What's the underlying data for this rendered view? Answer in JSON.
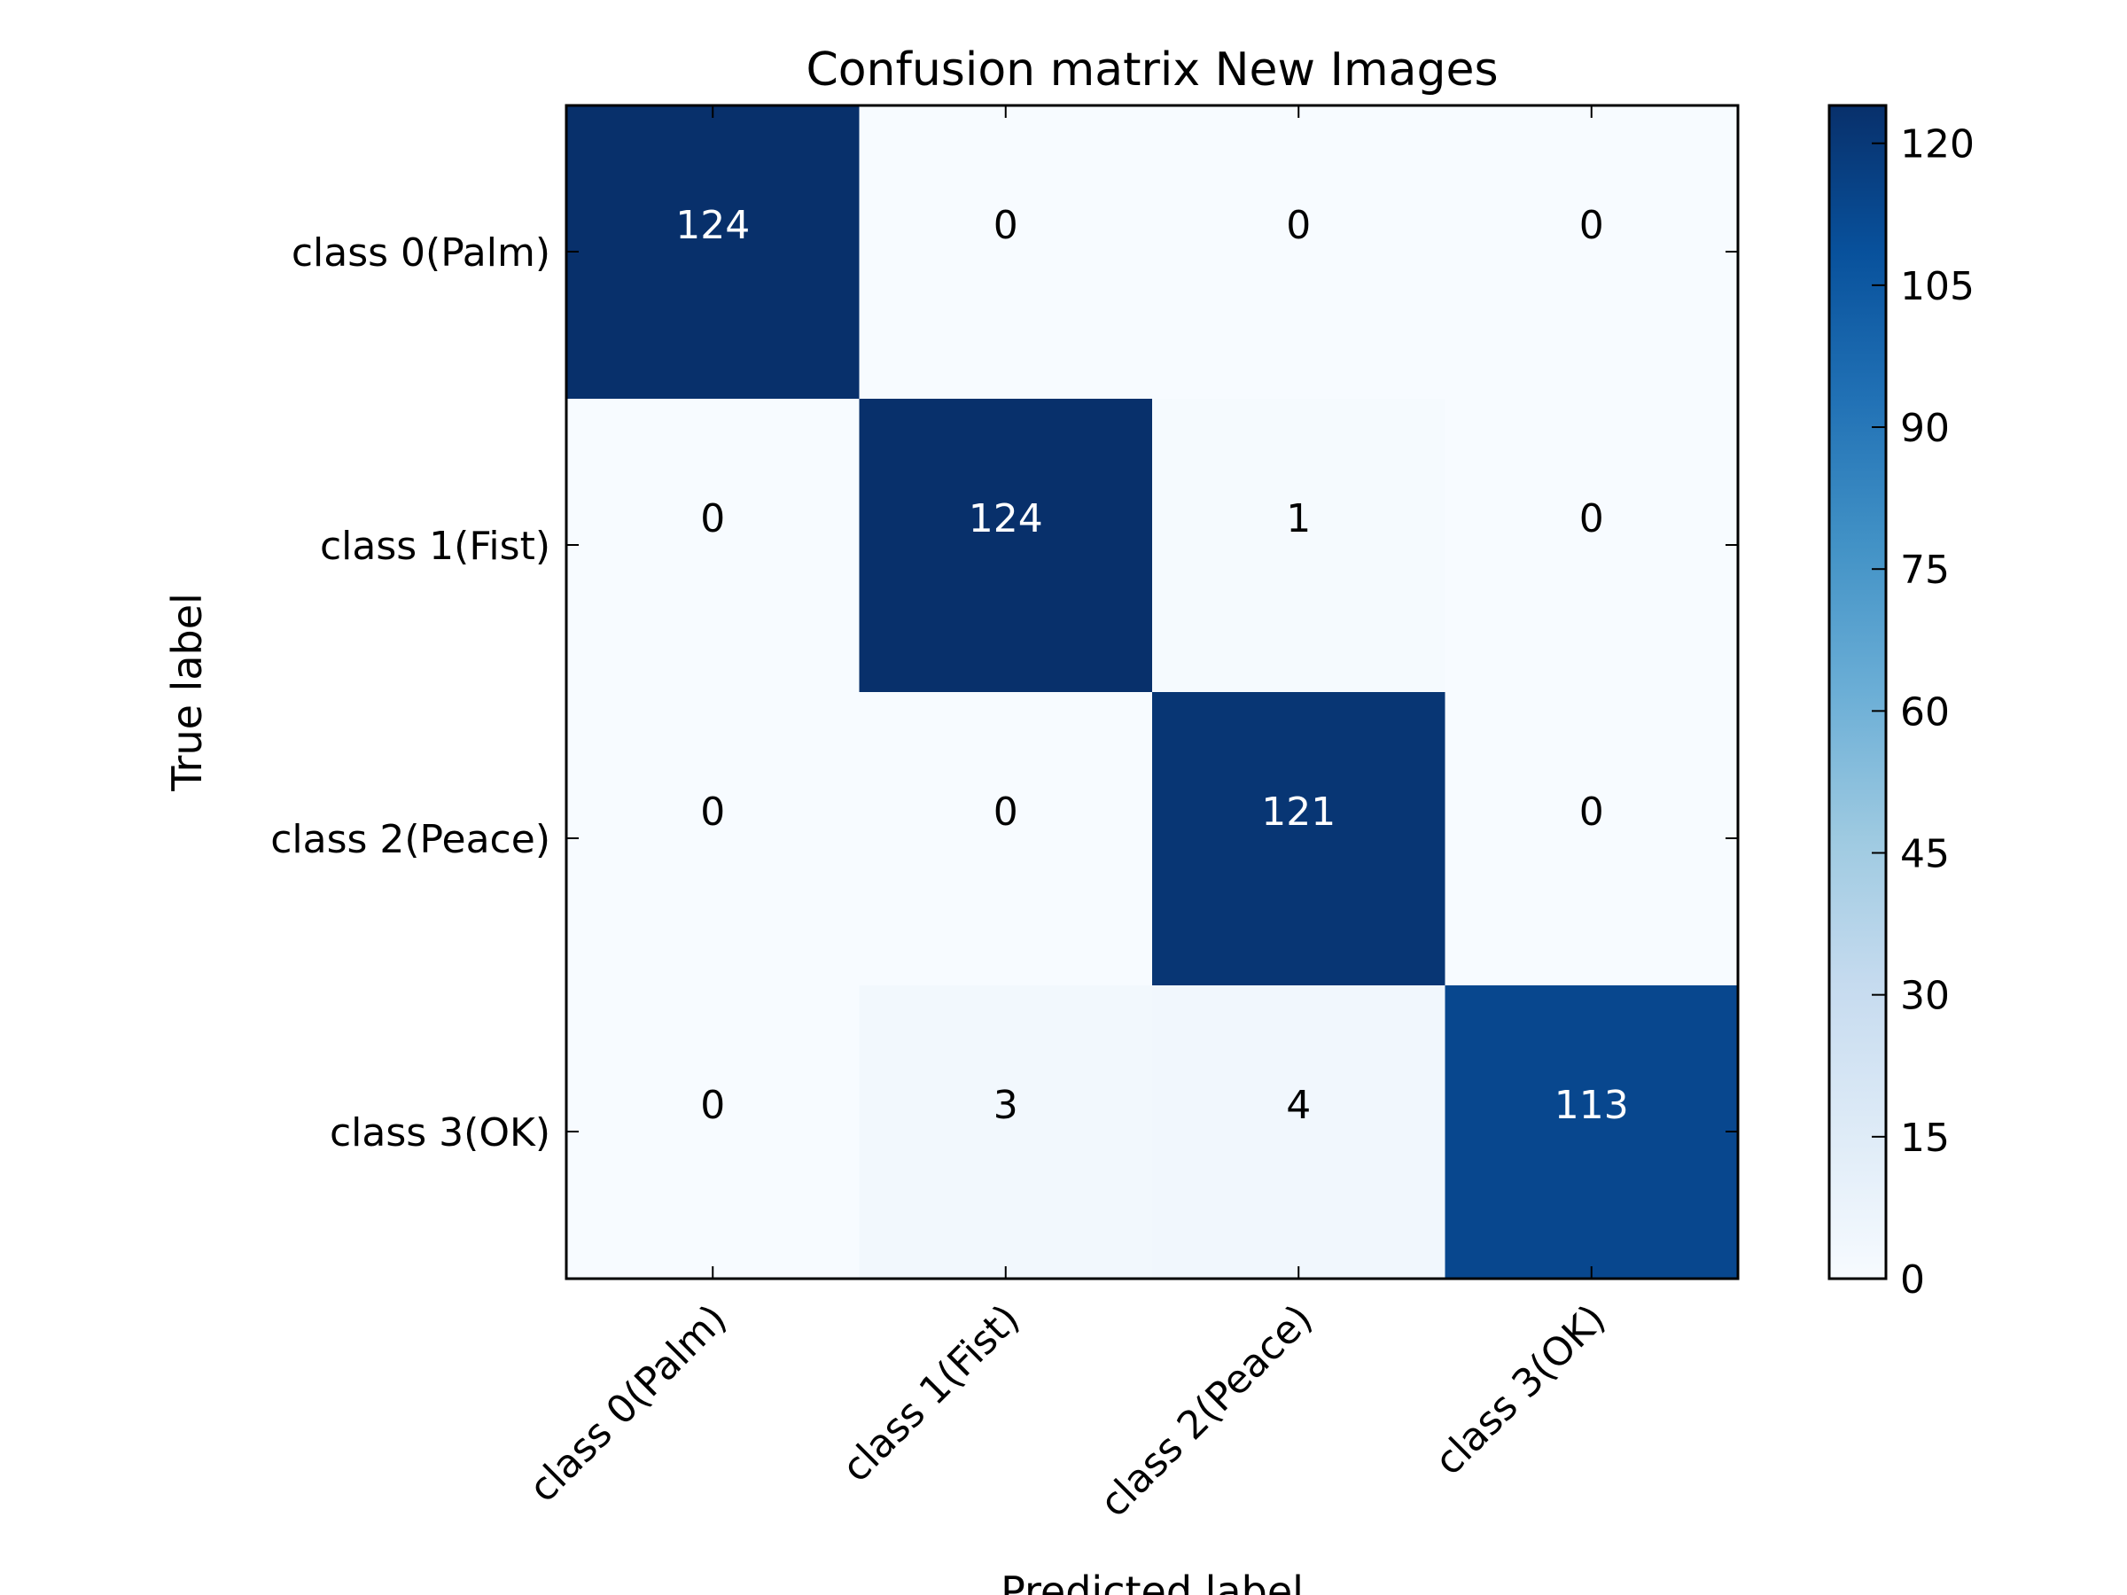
{
  "chart_data": {
    "type": "heatmap",
    "title": "Confusion matrix New Images",
    "xlabel": "Predicted label",
    "ylabel": "True label",
    "x_categories": [
      "class 0(Palm)",
      "class 1(Fist)",
      "class 2(Peace)",
      "class 3(OK)"
    ],
    "y_categories": [
      "class 0(Palm)",
      "class 1(Fist)",
      "class 2(Peace)",
      "class 3(OK)"
    ],
    "values": [
      [
        124,
        0,
        0,
        0
      ],
      [
        0,
        124,
        1,
        0
      ],
      [
        0,
        0,
        121,
        0
      ],
      [
        0,
        3,
        4,
        113
      ]
    ],
    "colormap": "Blues",
    "colorbar": {
      "min": 0,
      "max": 124,
      "ticks": [
        0,
        15,
        30,
        45,
        60,
        75,
        90,
        105,
        120
      ]
    },
    "colors": {
      "low": "#f7fbff",
      "high": "#08306b",
      "text_light": "#ffffff",
      "text_dark": "#000000"
    }
  }
}
